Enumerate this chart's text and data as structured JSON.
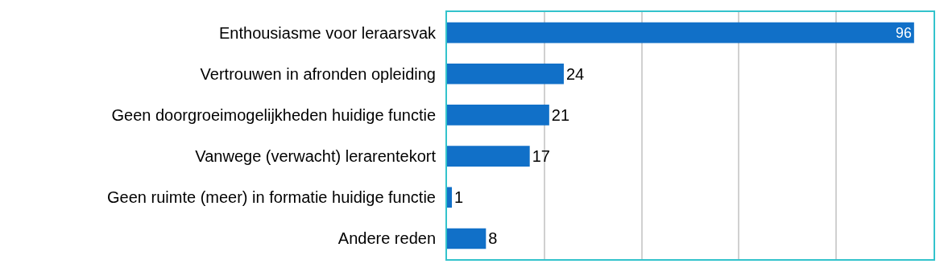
{
  "chart_data": {
    "type": "bar",
    "orientation": "horizontal",
    "categories": [
      "Enthousiasme voor leraarsvak",
      "Vertrouwen in afronden opleiding",
      "Geen doorgroeimogelijkheden huidige functie",
      "Vanwege (verwacht) lerarentekort",
      "Geen ruimte (meer) in formatie huidige functie",
      "Andere reden"
    ],
    "values": [
      96,
      24,
      21,
      17,
      1,
      8
    ],
    "color": "#1170c8",
    "xlim": [
      0,
      100
    ],
    "xticks": [
      {
        "value": 0,
        "label": null
      },
      {
        "value": 20,
        "label": null
      },
      {
        "value": 40,
        "label": null
      },
      {
        "value": 60,
        "label": null
      },
      {
        "value": 80,
        "label": null
      },
      {
        "value": 100,
        "label": null
      }
    ],
    "grid": "x",
    "tick_labels": "y",
    "data_labels": true
  }
}
